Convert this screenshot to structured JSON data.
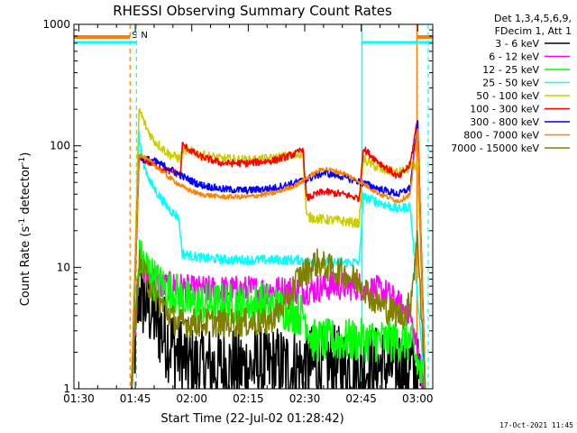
{
  "chart_data": {
    "type": "line",
    "title": "RHESSI Observing Summary Count Rates",
    "xlabel": "Start Time (22-Jul-02 01:28:42)",
    "ylabel": "Count Rate (s⁻¹ detector⁻¹)",
    "ylabel_main": "Count Rate (s",
    "ylabel_sup1": "-1",
    "ylabel_mid": " detector",
    "ylabel_sup2": "-1",
    "ylabel_end": ")",
    "yscale": "log",
    "ylim": [
      1,
      1000
    ],
    "xlim_minutes": [
      88.7,
      184
    ],
    "x_ticks": [
      {
        "label": "01:30",
        "minute": 90
      },
      {
        "label": "01:45",
        "minute": 105
      },
      {
        "label": "02:00",
        "minute": 120
      },
      {
        "label": "02:15",
        "minute": 135
      },
      {
        "label": "02:30",
        "minute": 150
      },
      {
        "label": "02:45",
        "minute": 165
      },
      {
        "label": "03:00",
        "minute": 180
      }
    ],
    "y_ticks": [
      {
        "label": "1",
        "value": 1
      },
      {
        "label": "10",
        "value": 10
      },
      {
        "label": "100",
        "value": 100
      },
      {
        "label": "1000",
        "value": 1000
      }
    ],
    "legend_header": [
      "Det 1,3,4,5,6,9,",
      "FDecim 1, Att 1"
    ],
    "legend_placement": "right",
    "series": [
      {
        "name": "3 - 6 keV",
        "color": "#000000",
        "x": [
          104,
          106,
          108,
          110,
          112,
          116,
          120,
          125,
          130,
          135,
          140,
          145,
          150,
          152,
          155,
          160,
          165,
          168,
          170,
          172,
          178,
          182
        ],
        "y": [
          1,
          6,
          5,
          4,
          3,
          2,
          1.5,
          1.5,
          1.5,
          1.5,
          1.5,
          1.5,
          1.5,
          1.5,
          1.5,
          1.5,
          1.5,
          1.5,
          1.5,
          1.5,
          1.5,
          1
        ]
      },
      {
        "name": "6 - 12 keV",
        "color": "#ff00ff",
        "x": [
          104,
          106,
          108,
          110,
          112,
          116,
          120,
          125,
          130,
          135,
          140,
          145,
          150,
          152,
          155,
          160,
          165,
          168,
          170,
          172,
          178,
          182
        ],
        "y": [
          1,
          11,
          9,
          8,
          7,
          7,
          6.5,
          6.5,
          6.5,
          6.5,
          6.5,
          6.5,
          6.5,
          6.5,
          7,
          7,
          7,
          6.5,
          6.5,
          6,
          4,
          1
        ]
      },
      {
        "name": "12 - 25 keV",
        "color": "#00ff00",
        "x": [
          104,
          106,
          108,
          110,
          112,
          116,
          120,
          125,
          130,
          135,
          140,
          145,
          150,
          152,
          155,
          160,
          165,
          168,
          170,
          172,
          178,
          182
        ],
        "y": [
          1,
          12,
          10,
          8,
          7,
          6,
          5,
          5,
          5,
          5,
          5,
          4.5,
          4,
          2.5,
          2.5,
          2.5,
          2.5,
          2.5,
          2.5,
          2.5,
          2.5,
          1
        ]
      },
      {
        "name": "25 - 50 keV",
        "color": "#00ffff",
        "x": [
          104,
          106,
          107,
          109,
          111,
          113,
          115,
          116.5,
          117.5,
          122,
          130,
          135,
          140,
          145,
          149.5,
          150.5,
          155,
          160,
          164.5,
          165.5,
          170,
          175,
          178,
          182
        ],
        "y": [
          1,
          120,
          75,
          50,
          40,
          33,
          28,
          26,
          13,
          12,
          11.5,
          11.5,
          11.5,
          11.5,
          11.5,
          11,
          11,
          11,
          11,
          38,
          34,
          30,
          32,
          1
        ]
      },
      {
        "name": "50 - 100 keV",
        "color": "#cccc00",
        "x": [
          104,
          106,
          108,
          110,
          114,
          117,
          117.5,
          122,
          128,
          135,
          142,
          148,
          149.5,
          150.5,
          154,
          160,
          164.5,
          165.5,
          170,
          175,
          180,
          182
        ],
        "y": [
          1,
          200,
          140,
          110,
          85,
          78,
          95,
          85,
          78,
          76,
          79,
          85,
          88,
          26,
          25,
          24,
          23,
          78,
          64,
          60,
          70,
          1
        ]
      },
      {
        "name": "100 - 300 keV",
        "color": "#ff0000",
        "x": [
          104,
          106,
          110,
          114,
          117,
          117.5,
          122,
          128,
          135,
          142,
          148,
          149.5,
          150.5,
          155,
          160,
          164.5,
          165.5,
          170,
          175,
          178,
          180,
          182
        ],
        "y": [
          1,
          80,
          70,
          62,
          58,
          102,
          82,
          72,
          72,
          76,
          87,
          96,
          37,
          42,
          40,
          37,
          95,
          72,
          55,
          70,
          170,
          1
        ]
      },
      {
        "name": "300 - 800 keV",
        "color": "#0000ff",
        "x": [
          104,
          106,
          110,
          114,
          118,
          122,
          128,
          135,
          142,
          148,
          152,
          155,
          160,
          165,
          170,
          175,
          178,
          180,
          182
        ],
        "y": [
          1,
          80,
          75,
          65,
          55,
          48,
          44,
          43,
          45,
          50,
          55,
          60,
          56,
          50,
          44,
          40,
          45,
          150,
          1
        ]
      },
      {
        "name": "800 - 7000 keV",
        "color": "#ff8000",
        "x": [
          104,
          106,
          110,
          114,
          118,
          122,
          128,
          135,
          142,
          148,
          152,
          155,
          160,
          165,
          170,
          175,
          178,
          180,
          182
        ],
        "y": [
          1,
          85,
          70,
          55,
          45,
          40,
          38,
          38,
          41,
          48,
          58,
          65,
          60,
          50,
          40,
          35,
          40,
          140,
          1
        ]
      },
      {
        "name": "7000 - 15000 keV",
        "color": "#808000",
        "x": [
          104,
          106,
          108,
          110,
          113,
          116,
          118,
          122,
          128,
          135,
          140,
          145,
          148,
          150,
          153,
          156,
          160,
          165,
          168,
          172,
          176,
          178,
          180,
          182
        ],
        "y": [
          1,
          11,
          8,
          6,
          4.5,
          3.5,
          3.5,
          3.5,
          3.5,
          3.5,
          3.5,
          5,
          8,
          9,
          11,
          10,
          9,
          7.5,
          5.5,
          4.5,
          4,
          5,
          18,
          1
        ]
      }
    ],
    "markers": [
      {
        "label": "S",
        "minute": 103.6,
        "color": "#ff8000"
      },
      {
        "label": "N",
        "minute": 105.3,
        "color": "#00ffff"
      }
    ],
    "footer_date": "17-Oct-2021 11:45"
  }
}
